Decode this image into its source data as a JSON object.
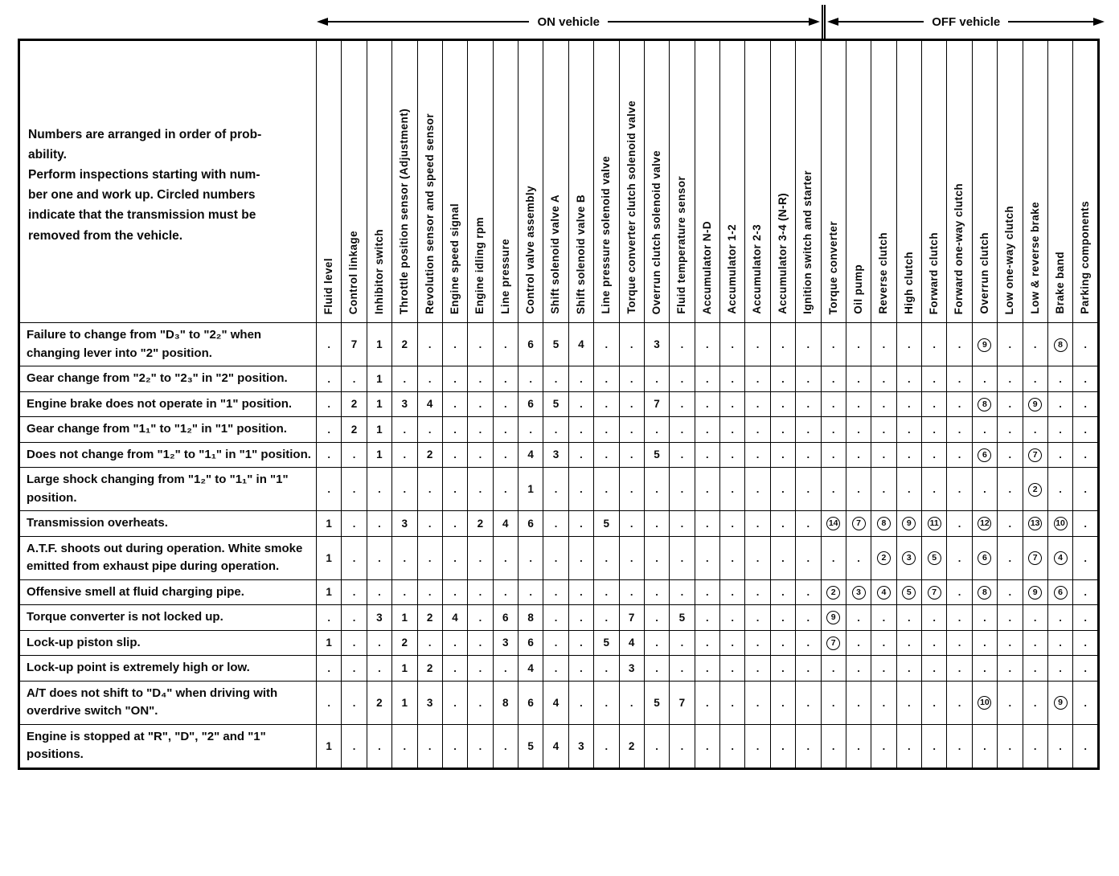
{
  "header": {
    "on_vehicle": "ON vehicle",
    "off_vehicle": "OFF vehicle"
  },
  "intro": "Numbers are arranged in order of prob-\nability.\nPerform inspections starting with num-\nber one and work up. Circled numbers\nindicate that the transmission must be\nremoved from the vehicle.",
  "columns": {
    "on_vehicle": [
      "Fluid level",
      "Control linkage",
      "Inhibitor switch",
      "Throttle position sensor (Adjustment)",
      "Revolution sensor and speed sensor",
      "Engine speed signal",
      "Engine idling rpm",
      "Line pressure",
      "Control valve assembly",
      "Shift solenoid valve A",
      "Shift solenoid valve B",
      "Line pressure solenoid valve",
      "Torque converter clutch solenoid valve",
      "Overrun clutch solenoid valve",
      "Fluid temperature sensor",
      "Accumulator N-D",
      "Accumulator 1-2",
      "Accumulator 2-3",
      "Accumulator 3-4 (N-R)",
      "Ignition switch and starter"
    ],
    "off_vehicle": [
      "Torque converter",
      "Oil pump",
      "Reverse clutch",
      "High clutch",
      "Forward clutch",
      "Forward one-way clutch",
      "Overrun clutch",
      "Low one-way clutch",
      "Low & reverse brake",
      "Brake band",
      "Parking components"
    ]
  },
  "rows": [
    {
      "symptom": "Failure to change from \"D₃\" to \"2₂\" when changing lever into \"2\" position.",
      "cells": [
        ".",
        "7",
        "1",
        "2",
        ".",
        ".",
        ".",
        ".",
        "6",
        "5",
        "4",
        ".",
        ".",
        "3",
        ".",
        ".",
        ".",
        ".",
        ".",
        ".",
        ".",
        ".",
        ".",
        ".",
        ".",
        ".",
        "(9)",
        ".",
        ".",
        "(8)",
        "."
      ]
    },
    {
      "symptom": "Gear change from \"2₂\" to \"2₃\" in \"2\" position.",
      "cells": [
        ".",
        ".",
        "1",
        ".",
        ".",
        ".",
        ".",
        ".",
        ".",
        ".",
        ".",
        ".",
        ".",
        ".",
        ".",
        ".",
        ".",
        ".",
        ".",
        ".",
        ".",
        ".",
        ".",
        ".",
        ".",
        ".",
        ".",
        ".",
        ".",
        ".",
        "."
      ]
    },
    {
      "symptom": "Engine brake does not operate in \"1\" position.",
      "cells": [
        ".",
        "2",
        "1",
        "3",
        "4",
        ".",
        ".",
        ".",
        "6",
        "5",
        ".",
        ".",
        ".",
        "7",
        ".",
        ".",
        ".",
        ".",
        ".",
        ".",
        ".",
        ".",
        ".",
        ".",
        ".",
        ".",
        "(8)",
        ".",
        "(9)",
        ".",
        "."
      ]
    },
    {
      "symptom": "Gear change from \"1₁\" to \"1₂\" in \"1\" position.",
      "cells": [
        ".",
        "2",
        "1",
        ".",
        ".",
        ".",
        ".",
        ".",
        ".",
        ".",
        ".",
        ".",
        ".",
        ".",
        ".",
        ".",
        ".",
        ".",
        ".",
        ".",
        ".",
        ".",
        ".",
        ".",
        ".",
        ".",
        ".",
        ".",
        ".",
        ".",
        "."
      ]
    },
    {
      "symptom": "Does not change from \"1₂\" to \"1₁\" in \"1\" position.",
      "cells": [
        ".",
        ".",
        "1",
        ".",
        "2",
        ".",
        ".",
        ".",
        "4",
        "3",
        ".",
        ".",
        ".",
        "5",
        ".",
        ".",
        ".",
        ".",
        ".",
        ".",
        ".",
        ".",
        ".",
        ".",
        ".",
        ".",
        "(6)",
        ".",
        "(7)",
        ".",
        "."
      ]
    },
    {
      "symptom": "Large shock changing from \"1₂\" to \"1₁\" in \"1\" position.",
      "cells": [
        ".",
        ".",
        ".",
        ".",
        ".",
        ".",
        ".",
        ".",
        "1",
        ".",
        ".",
        ".",
        ".",
        ".",
        ".",
        ".",
        ".",
        ".",
        ".",
        ".",
        ".",
        ".",
        ".",
        ".",
        ".",
        ".",
        ".",
        ".",
        "(2)",
        ".",
        "."
      ]
    },
    {
      "symptom": "Transmission overheats.",
      "cells": [
        "1",
        ".",
        ".",
        "3",
        ".",
        ".",
        "2",
        "4",
        "6",
        ".",
        ".",
        "5",
        ".",
        ".",
        ".",
        ".",
        ".",
        ".",
        ".",
        ".",
        "(14)",
        "(7)",
        "(8)",
        "(9)",
        "(11)",
        ".",
        "(12)",
        ".",
        "(13)",
        "(10)",
        "."
      ]
    },
    {
      "symptom": "A.T.F. shoots out during operation. White smoke emitted from exhaust pipe during operation.",
      "cells": [
        "1",
        ".",
        ".",
        ".",
        ".",
        ".",
        ".",
        ".",
        ".",
        ".",
        ".",
        ".",
        ".",
        ".",
        ".",
        ".",
        ".",
        ".",
        ".",
        ".",
        ".",
        ".",
        "(2)",
        "(3)",
        "(5)",
        ".",
        "(6)",
        ".",
        "(7)",
        "(4)",
        "."
      ]
    },
    {
      "symptom": "Offensive smell at fluid charging pipe.",
      "cells": [
        "1",
        ".",
        ".",
        ".",
        ".",
        ".",
        ".",
        ".",
        ".",
        ".",
        ".",
        ".",
        ".",
        ".",
        ".",
        ".",
        ".",
        ".",
        ".",
        ".",
        "(2)",
        "(3)",
        "(4)",
        "(5)",
        "(7)",
        ".",
        "(8)",
        ".",
        "(9)",
        "(6)",
        "."
      ]
    },
    {
      "symptom": "Torque converter is not locked up.",
      "cells": [
        ".",
        ".",
        "3",
        "1",
        "2",
        "4",
        ".",
        "6",
        "8",
        ".",
        ".",
        ".",
        "7",
        ".",
        "5",
        ".",
        ".",
        ".",
        ".",
        ".",
        "(9)",
        ".",
        ".",
        ".",
        ".",
        ".",
        ".",
        ".",
        ".",
        ".",
        "."
      ]
    },
    {
      "symptom": "Lock-up piston slip.",
      "cells": [
        "1",
        ".",
        ".",
        "2",
        ".",
        ".",
        ".",
        "3",
        "6",
        ".",
        ".",
        "5",
        "4",
        ".",
        ".",
        ".",
        ".",
        ".",
        ".",
        ".",
        "(7)",
        ".",
        ".",
        ".",
        ".",
        ".",
        ".",
        ".",
        ".",
        ".",
        "."
      ]
    },
    {
      "symptom": "Lock-up point is extremely high or low.",
      "cells": [
        ".",
        ".",
        ".",
        "1",
        "2",
        ".",
        ".",
        ".",
        "4",
        ".",
        ".",
        ".",
        "3",
        ".",
        ".",
        ".",
        ".",
        ".",
        ".",
        ".",
        ".",
        ".",
        ".",
        ".",
        ".",
        ".",
        ".",
        ".",
        ".",
        ".",
        "."
      ]
    },
    {
      "symptom": "A/T does not shift to \"D₄\" when driving with overdrive switch \"ON\".",
      "cells": [
        ".",
        ".",
        "2",
        "1",
        "3",
        ".",
        ".",
        "8",
        "6",
        "4",
        ".",
        ".",
        ".",
        "5",
        "7",
        ".",
        ".",
        ".",
        ".",
        ".",
        ".",
        ".",
        ".",
        ".",
        ".",
        ".",
        "(10)",
        ".",
        ".",
        "(9)",
        "."
      ]
    },
    {
      "symptom": "Engine is stopped at \"R\", \"D\", \"2\" and \"1\" positions.",
      "cells": [
        "1",
        ".",
        ".",
        ".",
        ".",
        ".",
        ".",
        ".",
        "5",
        "4",
        "3",
        ".",
        "2",
        ".",
        ".",
        ".",
        ".",
        ".",
        ".",
        ".",
        ".",
        ".",
        ".",
        ".",
        ".",
        ".",
        ".",
        ".",
        ".",
        ".",
        "."
      ]
    }
  ]
}
